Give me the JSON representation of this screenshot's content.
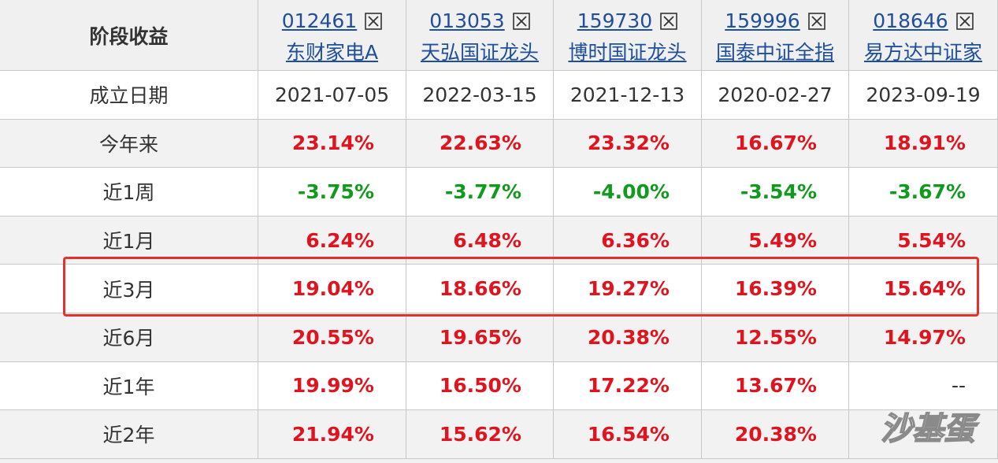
{
  "header": {
    "label": "阶段收益",
    "funds": [
      {
        "code": "012461",
        "name": "东财家电A"
      },
      {
        "code": "013053",
        "name": "天弘国证龙头"
      },
      {
        "code": "159730",
        "name": "博时国证龙头"
      },
      {
        "code": "159996",
        "name": "国泰中证全指"
      },
      {
        "code": "018646",
        "name": "易方达中证家"
      }
    ]
  },
  "rows": [
    {
      "label": "成立日期",
      "values": [
        "2021-07-05",
        "2022-03-15",
        "2021-12-13",
        "2020-02-27",
        "2023-09-19"
      ]
    },
    {
      "label": "今年来",
      "values": [
        "23.14%",
        "22.63%",
        "23.32%",
        "16.67%",
        "18.91%"
      ]
    },
    {
      "label": "近1周",
      "values": [
        "-3.75%",
        "-3.77%",
        "-4.00%",
        "-3.54%",
        "-3.67%"
      ]
    },
    {
      "label": "近1月",
      "values": [
        "6.24%",
        "6.48%",
        "6.36%",
        "5.49%",
        "5.54%"
      ]
    },
    {
      "label": "近3月",
      "values": [
        "19.04%",
        "18.66%",
        "19.27%",
        "16.39%",
        "15.64%"
      ]
    },
    {
      "label": "近6月",
      "values": [
        "20.55%",
        "19.65%",
        "20.38%",
        "12.55%",
        "14.97%"
      ]
    },
    {
      "label": "近1年",
      "values": [
        "19.99%",
        "16.50%",
        "17.22%",
        "13.67%",
        "--"
      ]
    },
    {
      "label": "近2年",
      "values": [
        "21.94%",
        "15.62%",
        "16.54%",
        "20.38%",
        null
      ]
    }
  ],
  "watermark": "沙基蛋"
}
